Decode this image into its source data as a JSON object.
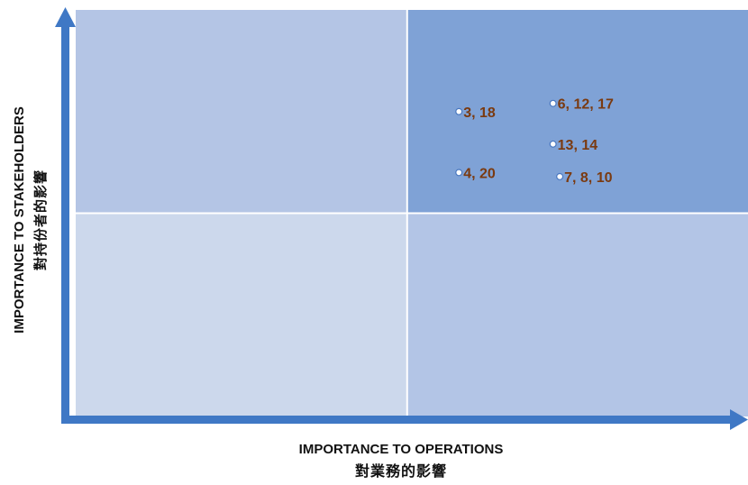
{
  "colors": {
    "quadrant_top_left": "#b4c5e5",
    "quadrant_top_right": "#7fa2d6",
    "quadrant_bottom_left": "#ccd8ec",
    "quadrant_bottom_right": "#b3c5e6",
    "axis": "#3f78c5",
    "label": "#7a3a10",
    "marker_fill": "#ffffff",
    "marker_stroke": "#4a78c0"
  },
  "chart_data": {
    "type": "scatter",
    "xlabel": "IMPORTANCE TO OPERATIONS",
    "xlabel_secondary": "對業務的影響",
    "ylabel": "IMPORTANCE TO STAKEHOLDERS",
    "ylabel_secondary": "對持份者的影響",
    "xlim": [
      0,
      1
    ],
    "ylim": [
      0,
      1
    ],
    "grid": false,
    "quadrant_split": {
      "x": 0.5,
      "y": 0.5
    },
    "points": [
      {
        "label": "3, 18",
        "x": 0.57,
        "y": 0.75
      },
      {
        "label": "6, 12, 17",
        "x": 0.71,
        "y": 0.77
      },
      {
        "label": "13, 14",
        "x": 0.71,
        "y": 0.67
      },
      {
        "label": "4, 20",
        "x": 0.57,
        "y": 0.6
      },
      {
        "label": "7, 8, 10",
        "x": 0.72,
        "y": 0.59
      }
    ]
  }
}
